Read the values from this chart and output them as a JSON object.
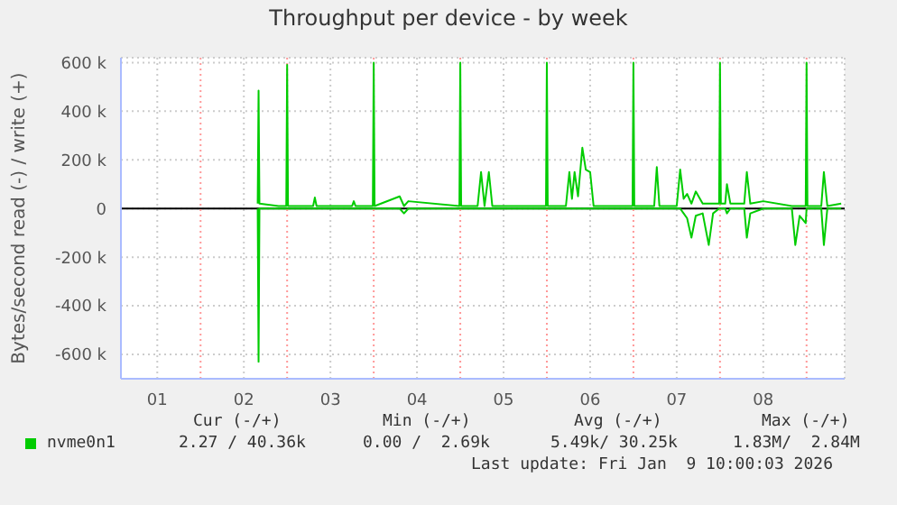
{
  "chart_data": {
    "type": "line",
    "title": "Throughput per device - by week",
    "ylabel": "Bytes/second read (-) / write (+)",
    "x": [
      2.66,
      2.67,
      2.68,
      2.9,
      2.99,
      3.0,
      3.01,
      3.3,
      3.32,
      3.34,
      3.75,
      3.77,
      3.79,
      3.99,
      4.0,
      4.01,
      4.3,
      4.35,
      4.4,
      4.99,
      5.0,
      5.01,
      5.2,
      5.24,
      5.28,
      5.33,
      5.37,
      5.99,
      6.0,
      6.01,
      6.22,
      6.26,
      6.29,
      6.32,
      6.36,
      6.41,
      6.45,
      6.5,
      6.54,
      6.99,
      7.0,
      7.01,
      7.24,
      7.27,
      7.3,
      7.5,
      7.54,
      7.58,
      7.62,
      7.67,
      7.72,
      7.8,
      7.87,
      7.92,
      7.99,
      8.0,
      8.01,
      8.06,
      8.08,
      8.12,
      8.28,
      8.31,
      8.35,
      8.5,
      8.83,
      8.87,
      8.92,
      8.99,
      9.0,
      9.01,
      9.17,
      9.2,
      9.24,
      9.4
    ],
    "series": [
      {
        "name": "nvme0n1",
        "color": "#00cc00",
        "values": [
          20000,
          485000,
          20000,
          10000,
          10000,
          590000,
          10000,
          10000,
          45000,
          10000,
          10000,
          30000,
          10000,
          10000,
          600000,
          10000,
          50000,
          10000,
          30000,
          10000,
          600000,
          10000,
          10000,
          150000,
          10000,
          150000,
          10000,
          10000,
          600000,
          10000,
          10000,
          150000,
          40000,
          150000,
          50000,
          250000,
          160000,
          150000,
          10000,
          10000,
          600000,
          10000,
          10000,
          170000,
          10000,
          10000,
          160000,
          40000,
          60000,
          20000,
          70000,
          20000,
          20000,
          20000,
          20000,
          600000,
          20000,
          20000,
          100000,
          20000,
          20000,
          150000,
          20000,
          30000,
          10000,
          10000,
          10000,
          10000,
          600000,
          10000,
          10000,
          150000,
          10000,
          20000
        ]
      },
      {
        "color": "#00cc00",
        "values": [
          0,
          -630000,
          0,
          0,
          0,
          0,
          0,
          0,
          0,
          0,
          0,
          0,
          0,
          0,
          0,
          0,
          0,
          -20000,
          0,
          0,
          0,
          0,
          0,
          0,
          0,
          0,
          0,
          0,
          0,
          0,
          0,
          0,
          0,
          0,
          0,
          0,
          0,
          0,
          0,
          0,
          0,
          0,
          0,
          0,
          0,
          0,
          0,
          -20000,
          -40000,
          -120000,
          -30000,
          -20000,
          -150000,
          -20000,
          0,
          0,
          0,
          0,
          -20000,
          0,
          0,
          -120000,
          -20000,
          0,
          0,
          -150000,
          -30000,
          -60000,
          0,
          0,
          0,
          -150000,
          0,
          0
        ]
      }
    ],
    "xlim": [
      1.08,
      9.44
    ],
    "xticks": [
      {
        "value": 1.5,
        "label": "01"
      },
      {
        "value": 2.5,
        "label": "02"
      },
      {
        "value": 3.5,
        "label": "03"
      },
      {
        "value": 4.5,
        "label": "04"
      },
      {
        "value": 5.5,
        "label": "05"
      },
      {
        "value": 6.5,
        "label": "06"
      },
      {
        "value": 7.5,
        "label": "07"
      },
      {
        "value": 8.5,
        "label": "08"
      }
    ],
    "ylim": [
      -700000,
      620000
    ],
    "yticks": [
      {
        "value": -600000,
        "label": "-600 k"
      },
      {
        "value": -400000,
        "label": "-400 k"
      },
      {
        "value": -200000,
        "label": "-200 k"
      },
      0,
      {
        "value": 200000,
        "label": "200 k"
      },
      {
        "value": 400000,
        "label": "400 k"
      },
      {
        "value": 600000,
        "label": "600 k"
      }
    ],
    "ref_lines": [
      {
        "axis": "y",
        "value": 0,
        "color": "#000000"
      },
      {
        "axis": "x",
        "value": 2,
        "color": "#ff9999",
        "line_style": "dotted"
      },
      {
        "axis": "x",
        "value": 3,
        "color": "#ff9999",
        "line_style": "dotted"
      },
      {
        "axis": "x",
        "value": 4,
        "color": "#ff9999",
        "line_style": "dotted"
      },
      {
        "axis": "x",
        "value": 5,
        "color": "#ff9999",
        "line_style": "dotted"
      },
      {
        "axis": "x",
        "value": 6,
        "color": "#ff9999",
        "line_style": "dotted"
      },
      {
        "axis": "x",
        "value": 7,
        "color": "#ff9999",
        "line_style": "dotted"
      },
      {
        "axis": "x",
        "value": 8,
        "color": "#ff9999",
        "line_style": "dotted"
      },
      {
        "axis": "x",
        "value": 9,
        "color": "#ff9999",
        "line_style": "dotted"
      }
    ],
    "grid": true,
    "legend": "bottom left",
    "marker": "none",
    "line_style": "solid",
    "annotations": [
      "Cur (-/+)",
      "Min (-/+)",
      "Avg (-/+)",
      "Max (-/+)",
      "2.27 / 40.36k",
      "0.00 /  2.69k",
      "5.49k/ 30.25k",
      "1.83M/  2.84M",
      "Last update: Fri Jan  9 10:00:03 2026"
    ]
  }
}
